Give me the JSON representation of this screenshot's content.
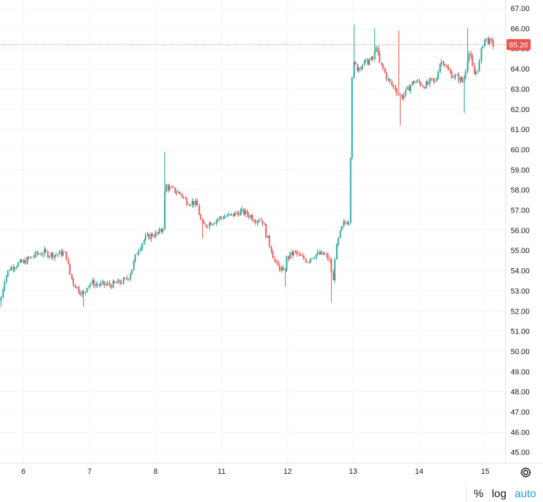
{
  "colors": {
    "up": "#26a69a",
    "down": "#ef5350",
    "grid": "#f0f3fa",
    "last_price_line": "#ef5350",
    "last_price_bg": "#ef5350",
    "axis_text": "#131722",
    "active_control": "#2196f3"
  },
  "controls": {
    "percent": "%",
    "log": "log",
    "auto": "auto"
  },
  "settings_icon": "gear-icon",
  "chart_data": {
    "type": "candlestick",
    "y_axis": {
      "position": "right",
      "range": [
        44.6,
        67.3
      ],
      "ticks": [
        "45.00",
        "46.00",
        "47.00",
        "48.00",
        "49.00",
        "50.00",
        "51.00",
        "52.00",
        "53.00",
        "54.00",
        "55.00",
        "56.00",
        "57.00",
        "58.00",
        "59.00",
        "60.00",
        "61.00",
        "62.00",
        "63.00",
        "64.00",
        "65.00",
        "66.00",
        "67.00"
      ]
    },
    "x_axis": {
      "ticks": [
        "6",
        "7",
        "8",
        "11",
        "12",
        "13",
        "14",
        "15"
      ]
    },
    "last_price": {
      "value": 65.2,
      "label": "65.20"
    },
    "grid": true,
    "path_points": [
      [
        0,
        52.5
      ],
      [
        6,
        53.6
      ],
      [
        13,
        54.1
      ],
      [
        22,
        54.3
      ],
      [
        32,
        54.4
      ],
      [
        42,
        54.6
      ],
      [
        52,
        54.8
      ],
      [
        62,
        54.9
      ],
      [
        72,
        54.8
      ],
      [
        82,
        54.8
      ],
      [
        92,
        54.9
      ],
      [
        96,
        54.7
      ],
      [
        100,
        53.9
      ],
      [
        106,
        53.4
      ],
      [
        112,
        53.1
      ],
      [
        118,
        52.9
      ],
      [
        122,
        52.8
      ],
      [
        126,
        53.3
      ],
      [
        132,
        53.4
      ],
      [
        142,
        53.3
      ],
      [
        152,
        53.3
      ],
      [
        162,
        53.3
      ],
      [
        172,
        53.4
      ],
      [
        180,
        53.5
      ],
      [
        186,
        53.7
      ],
      [
        192,
        54.2
      ],
      [
        198,
        54.9
      ],
      [
        204,
        55.3
      ],
      [
        210,
        55.6
      ],
      [
        216,
        55.7
      ],
      [
        222,
        55.8
      ],
      [
        228,
        55.8
      ],
      [
        234,
        56.0
      ],
      [
        237,
        56.3
      ],
      [
        239,
        58.3
      ],
      [
        244,
        58.1
      ],
      [
        250,
        58.0
      ],
      [
        256,
        57.9
      ],
      [
        262,
        57.8
      ],
      [
        268,
        57.5
      ],
      [
        274,
        57.4
      ],
      [
        280,
        57.4
      ],
      [
        286,
        57.2
      ],
      [
        290,
        56.6
      ],
      [
        294,
        56.2
      ],
      [
        300,
        56.3
      ],
      [
        306,
        56.4
      ],
      [
        312,
        56.5
      ],
      [
        318,
        56.6
      ],
      [
        326,
        56.7
      ],
      [
        334,
        56.7
      ],
      [
        340,
        56.8
      ],
      [
        346,
        56.9
      ],
      [
        352,
        56.9
      ],
      [
        358,
        56.8
      ],
      [
        364,
        56.7
      ],
      [
        370,
        56.5
      ],
      [
        376,
        56.6
      ],
      [
        382,
        56.4
      ],
      [
        386,
        55.8
      ],
      [
        390,
        55.4
      ],
      [
        394,
        55.0
      ],
      [
        398,
        54.5
      ],
      [
        402,
        54.2
      ],
      [
        408,
        54.1
      ],
      [
        412,
        53.8
      ],
      [
        416,
        54.6
      ],
      [
        422,
        54.8
      ],
      [
        428,
        54.9
      ],
      [
        434,
        54.7
      ],
      [
        440,
        54.6
      ],
      [
        446,
        54.5
      ],
      [
        452,
        54.7
      ],
      [
        458,
        54.8
      ],
      [
        464,
        54.8
      ],
      [
        470,
        54.8
      ],
      [
        476,
        54.6
      ],
      [
        480,
        54.3
      ],
      [
        483,
        53.2
      ],
      [
        486,
        54.7
      ],
      [
        490,
        55.4
      ],
      [
        494,
        55.9
      ],
      [
        498,
        56.3
      ],
      [
        502,
        56.4
      ],
      [
        506,
        56.5
      ],
      [
        508,
        58.5
      ],
      [
        510,
        63.5
      ],
      [
        514,
        64.3
      ],
      [
        518,
        64.0
      ],
      [
        524,
        64.2
      ],
      [
        530,
        64.3
      ],
      [
        536,
        64.4
      ],
      [
        542,
        64.5
      ],
      [
        546,
        65.2
      ],
      [
        550,
        64.3
      ],
      [
        556,
        64.0
      ],
      [
        562,
        63.5
      ],
      [
        568,
        63.2
      ],
      [
        574,
        63.0
      ],
      [
        578,
        62.8
      ],
      [
        582,
        62.6
      ],
      [
        586,
        62.7
      ],
      [
        590,
        62.9
      ],
      [
        596,
        63.2
      ],
      [
        602,
        63.4
      ],
      [
        608,
        63.3
      ],
      [
        614,
        63.2
      ],
      [
        620,
        63.2
      ],
      [
        626,
        63.4
      ],
      [
        632,
        63.3
      ],
      [
        638,
        64.3
      ],
      [
        644,
        64.4
      ],
      [
        650,
        63.9
      ],
      [
        656,
        63.7
      ],
      [
        662,
        63.6
      ],
      [
        668,
        63.5
      ],
      [
        672,
        63.3
      ],
      [
        676,
        64.0
      ],
      [
        680,
        64.9
      ],
      [
        684,
        64.4
      ],
      [
        688,
        63.7
      ],
      [
        692,
        63.9
      ],
      [
        696,
        64.3
      ],
      [
        700,
        65.2
      ],
      [
        704,
        65.5
      ],
      [
        708,
        65.4
      ],
      [
        712,
        65.3
      ],
      [
        716,
        65.2
      ]
    ],
    "spikes": [
      {
        "at": 238,
        "high": 59.9
      },
      {
        "at": 514,
        "high": 66.2
      },
      {
        "at": 544,
        "high": 66.0
      },
      {
        "at": 578,
        "high": 65.9
      },
      {
        "at": 678,
        "high": 66.0
      },
      {
        "at": 122,
        "low": 52.2
      },
      {
        "at": 482,
        "low": 52.4
      },
      {
        "at": 414,
        "low": 53.2
      },
      {
        "at": 580,
        "low": 61.2
      },
      {
        "at": 674,
        "low": 61.8
      },
      {
        "at": 294,
        "low": 55.6
      },
      {
        "at": 0,
        "low": 52.2
      }
    ]
  }
}
